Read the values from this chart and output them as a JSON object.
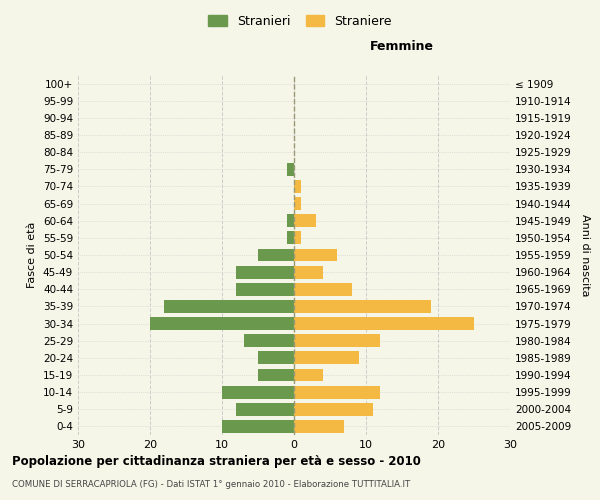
{
  "age_groups": [
    "0-4",
    "5-9",
    "10-14",
    "15-19",
    "20-24",
    "25-29",
    "30-34",
    "35-39",
    "40-44",
    "45-49",
    "50-54",
    "55-59",
    "60-64",
    "65-69",
    "70-74",
    "75-79",
    "80-84",
    "85-89",
    "90-94",
    "95-99",
    "100+"
  ],
  "birth_years": [
    "2005-2009",
    "2000-2004",
    "1995-1999",
    "1990-1994",
    "1985-1989",
    "1980-1984",
    "1975-1979",
    "1970-1974",
    "1965-1969",
    "1960-1964",
    "1955-1959",
    "1950-1954",
    "1945-1949",
    "1940-1944",
    "1935-1939",
    "1930-1934",
    "1925-1929",
    "1920-1924",
    "1915-1919",
    "1910-1914",
    "≤ 1909"
  ],
  "males": [
    10,
    8,
    10,
    5,
    5,
    7,
    20,
    18,
    8,
    8,
    5,
    1,
    1,
    0,
    0,
    1,
    0,
    0,
    0,
    0,
    0
  ],
  "females": [
    7,
    11,
    12,
    4,
    9,
    12,
    25,
    19,
    8,
    4,
    6,
    1,
    3,
    1,
    1,
    0,
    0,
    0,
    0,
    0,
    0
  ],
  "male_color": "#6a994e",
  "female_color": "#f4b942",
  "background_color": "#f5f5e8",
  "grid_color": "#cccccc",
  "dashed_line_color": "#999977",
  "xlim": 30,
  "title": "Popolazione per cittadinanza straniera per età e sesso - 2010",
  "subtitle": "COMUNE DI SERRACAPRIOLA (FG) - Dati ISTAT 1° gennaio 2010 - Elaborazione TUTTITALIA.IT",
  "right_label": "Femmine",
  "left_axis_label": "Fasce di età",
  "right_axis_label": "Anni di nascita",
  "legend_male": "Stranieri",
  "legend_female": "Straniere"
}
